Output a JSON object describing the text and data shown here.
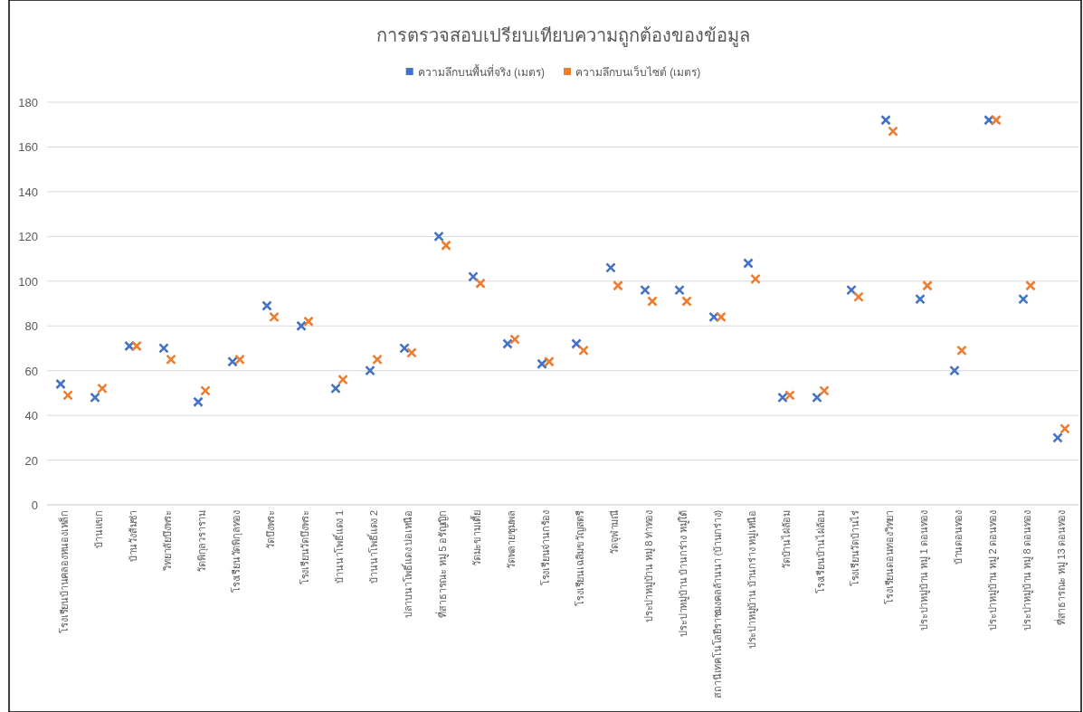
{
  "chart_data": {
    "type": "scatter",
    "title": "การตรวจสอบเปรียบเทียบความถูกต้องของข้อมูล",
    "categories": [
      "โรงเรียนบ้านคลองหนองเหล็ก",
      "บ้านแขก",
      "บ้านวังส้มซ่า",
      "วิทยาลัยบึงพระ",
      "วัดพิกุลวราราม",
      "โรงเรียนวัดพิกุลทอง",
      "วัดบึงพระ",
      "โรงเรียนวัดบึงพระ",
      "บ้านนาโพธิ์แดง 1",
      "บ้านนาโพธิ์แดง 2",
      "ปลาบนาโพธิ์แดง บ่อเหนือ",
      "ที่สาธารณะ หมู่ 5 อรัญญิก",
      "วัดมะขามเตี้ย",
      "วัดพลายชุมพล",
      "โรงเรียนจ่านกร้อง",
      "โรงเรียนเฉลิมขวัญสตรี",
      "วัดจุฬามณี",
      "ประปาหมู่บ้าน หมู่ 8 ท่าทอง",
      "ประปาหมู่บ้าน บ้านกร่าง หมู่ใต้",
      "สถานีเทคโนโลยีราชมงคลล้านนา (บ้านกร่าง)",
      "ประปาหมู่บ้าน บ้านกร่าง หมู่เหนือ",
      "วัดบ้านไผ่ล้อม",
      "โรงเรียนบ้านไผ่ล้อม",
      "โรงเรียนวัดบ้านไร่",
      "โรงเรียนดอนทองวิทยา",
      "ประปาหมู่บ้าน หมู่ 1 ดอนทอง",
      "บ้านดอนทอง",
      "ประปาหมู่บ้าน หมู่ 2 ดอนทอง",
      "ประปาหมู่บ้าน หมู่ 8 ดอนทอง",
      "ที่สาธารณะ หมู่ 13 ดอนทอง"
    ],
    "series": [
      {
        "name": "ความลึกบนพื้นที่จริง (เมตร)",
        "color": "#4472c4",
        "values": [
          54,
          48,
          71,
          70,
          46,
          64,
          89,
          80,
          52,
          60,
          70,
          120,
          102,
          72,
          63,
          72,
          106,
          96,
          96,
          84,
          108,
          48,
          48,
          96,
          172,
          92,
          60,
          172,
          92,
          30
        ]
      },
      {
        "name": "ความลึกบนเว็บไซต์ (เมตร)",
        "color": "#ed7d31",
        "values": [
          49,
          52,
          71,
          65,
          51,
          65,
          84,
          82,
          56,
          65,
          68,
          116,
          99,
          74,
          64,
          69,
          98,
          91,
          91,
          84,
          101,
          49,
          51,
          93,
          167,
          98,
          69,
          172,
          98,
          34
        ]
      }
    ],
    "ylim": [
      0,
      180
    ],
    "yticks": [
      0,
      20,
      40,
      60,
      80,
      100,
      120,
      140,
      160,
      180
    ],
    "grid": "y",
    "legend": "top",
    "marker": "cross"
  }
}
